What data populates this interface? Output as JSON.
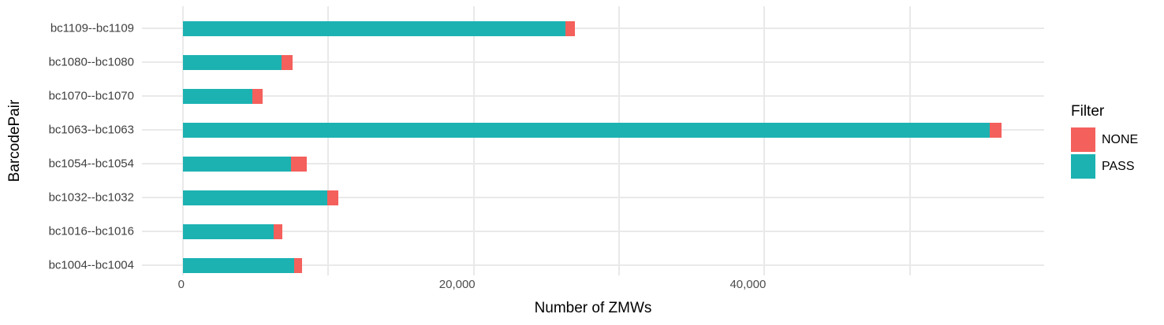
{
  "accent_colors": {
    "pass_teal": "#1cb2b2",
    "none_coral": "#f4605c",
    "gridline": "#e9e9e9"
  },
  "chart_data": {
    "type": "bar",
    "orientation": "horizontal",
    "stacked": true,
    "title": "",
    "xlabel": "Number of ZMWs",
    "ylabel": "BarcodePair",
    "categories_top_to_bottom": [
      "bc1109--bc1109",
      "bc1080--bc1080",
      "bc1070--bc1070",
      "bc1063--bc1063",
      "bc1054--bc1054",
      "bc1032--bc1032",
      "bc1016--bc1016",
      "bc1004--bc1004"
    ],
    "series": [
      {
        "name": "PASS",
        "color": "#1cb2b2",
        "values": [
          26300,
          6760,
          4770,
          55500,
          7430,
          9940,
          6250,
          7660
        ]
      },
      {
        "name": "NONE",
        "color": "#f4605c",
        "values": [
          640,
          760,
          690,
          820,
          1100,
          730,
          570,
          550
        ]
      }
    ],
    "x_axis": {
      "ticks": [
        0,
        20000,
        40000
      ],
      "tick_labels": [
        "0",
        "20,000",
        "40,000"
      ],
      "minor_ticks": [
        10000,
        30000,
        50000
      ],
      "range": [
        -2820,
        59240
      ]
    },
    "grid": true,
    "legend": {
      "title": "Filter",
      "position": "right",
      "entries": [
        {
          "label": "NONE",
          "color": "#f4605c"
        },
        {
          "label": "PASS",
          "color": "#1cb2b2"
        }
      ]
    }
  }
}
